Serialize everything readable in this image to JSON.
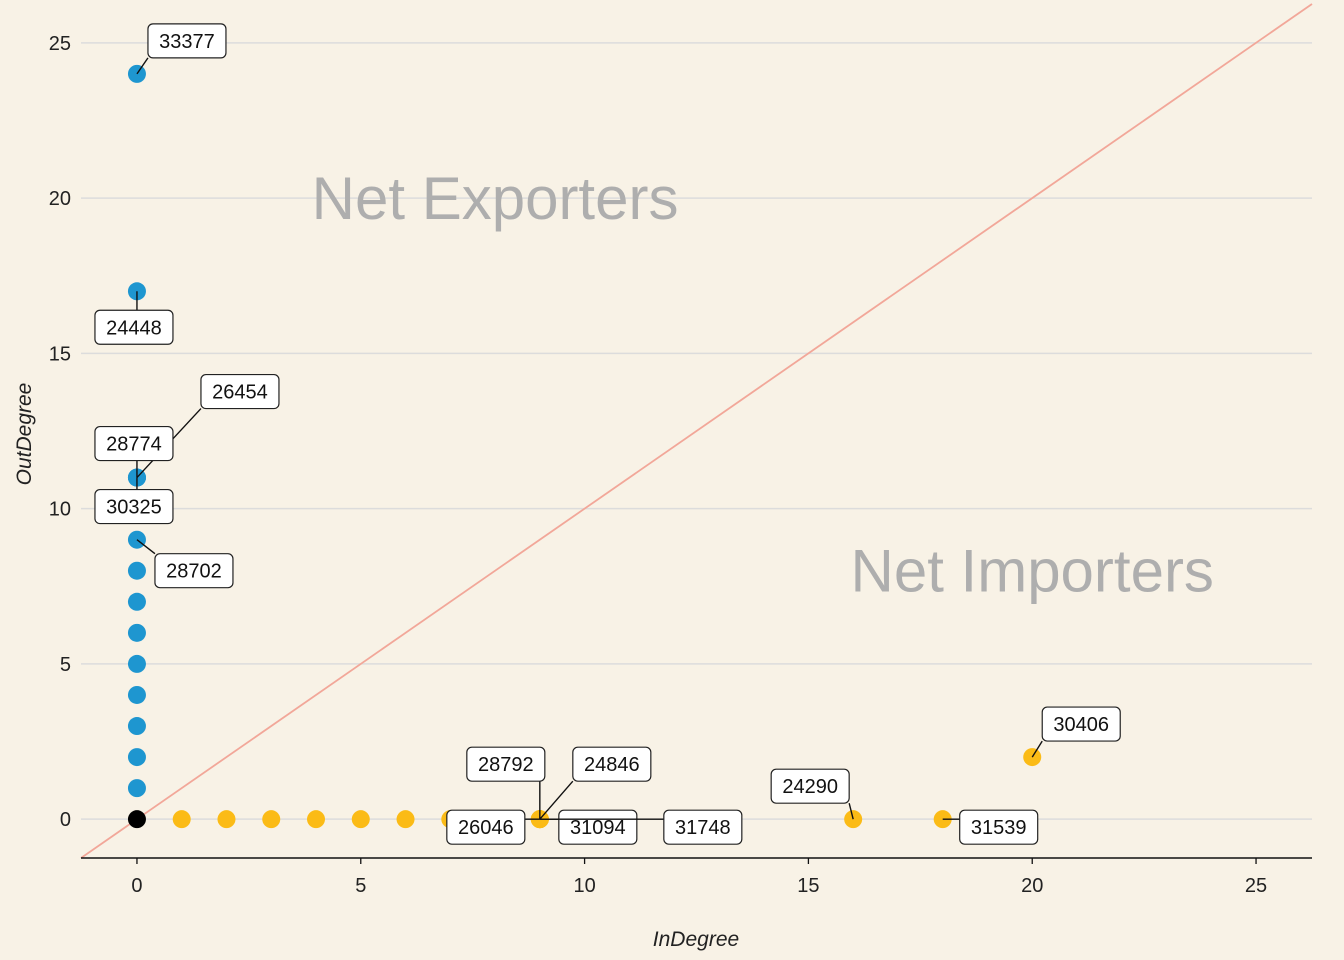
{
  "chart_data": {
    "type": "scatter",
    "xlabel": "InDegree",
    "ylabel": "OutDegree",
    "xlim": [
      -1.25,
      26.25
    ],
    "ylim": [
      -1.25,
      26.25
    ],
    "x_ticks": [
      0,
      5,
      10,
      15,
      20,
      25
    ],
    "y_ticks": [
      0,
      5,
      10,
      15,
      20,
      25
    ],
    "grid": "horizontal",
    "reference_line": {
      "type": "identity",
      "label": "y = x",
      "color": "#F2A799"
    },
    "annotations": [
      {
        "text": "Net Exporters",
        "x": 8.0,
        "y": 20
      },
      {
        "text": "Net Importers",
        "x": 20.0,
        "y": 8
      }
    ],
    "series": [
      {
        "color": "#1E96D0",
        "points": [
          {
            "x": 0,
            "y": 24,
            "label": "33377"
          },
          {
            "x": 0,
            "y": 17,
            "label": "24448"
          },
          {
            "x": 0,
            "y": 11,
            "label": "26454"
          },
          {
            "x": 0,
            "y": 11,
            "label": "28774"
          },
          {
            "x": 0,
            "y": 11,
            "label": "30325"
          },
          {
            "x": 0,
            "y": 9,
            "label": "28702"
          },
          {
            "x": 0,
            "y": 8
          },
          {
            "x": 0,
            "y": 7
          },
          {
            "x": 0,
            "y": 6
          },
          {
            "x": 0,
            "y": 5
          },
          {
            "x": 0,
            "y": 4
          },
          {
            "x": 0,
            "y": 3
          },
          {
            "x": 0,
            "y": 2
          },
          {
            "x": 0,
            "y": 1
          }
        ]
      },
      {
        "color": "#FBBB16",
        "points": [
          {
            "x": 1,
            "y": 0
          },
          {
            "x": 2,
            "y": 0
          },
          {
            "x": 3,
            "y": 0
          },
          {
            "x": 4,
            "y": 0
          },
          {
            "x": 5,
            "y": 0
          },
          {
            "x": 6,
            "y": 0
          },
          {
            "x": 7,
            "y": 0
          },
          {
            "x": 9,
            "y": 0,
            "label": "28792"
          },
          {
            "x": 9,
            "y": 0,
            "label": "26046"
          },
          {
            "x": 9,
            "y": 0,
            "label": "24846"
          },
          {
            "x": 9,
            "y": 0,
            "label": "31094"
          },
          {
            "x": 9,
            "y": 0,
            "label": "31748"
          },
          {
            "x": 16,
            "y": 0,
            "label": "24290"
          },
          {
            "x": 18,
            "y": 0,
            "label": "31539"
          },
          {
            "x": 20,
            "y": 2,
            "label": "30406"
          }
        ]
      },
      {
        "color": "#000000",
        "points": [
          {
            "x": 0,
            "y": 0
          }
        ]
      }
    ]
  }
}
